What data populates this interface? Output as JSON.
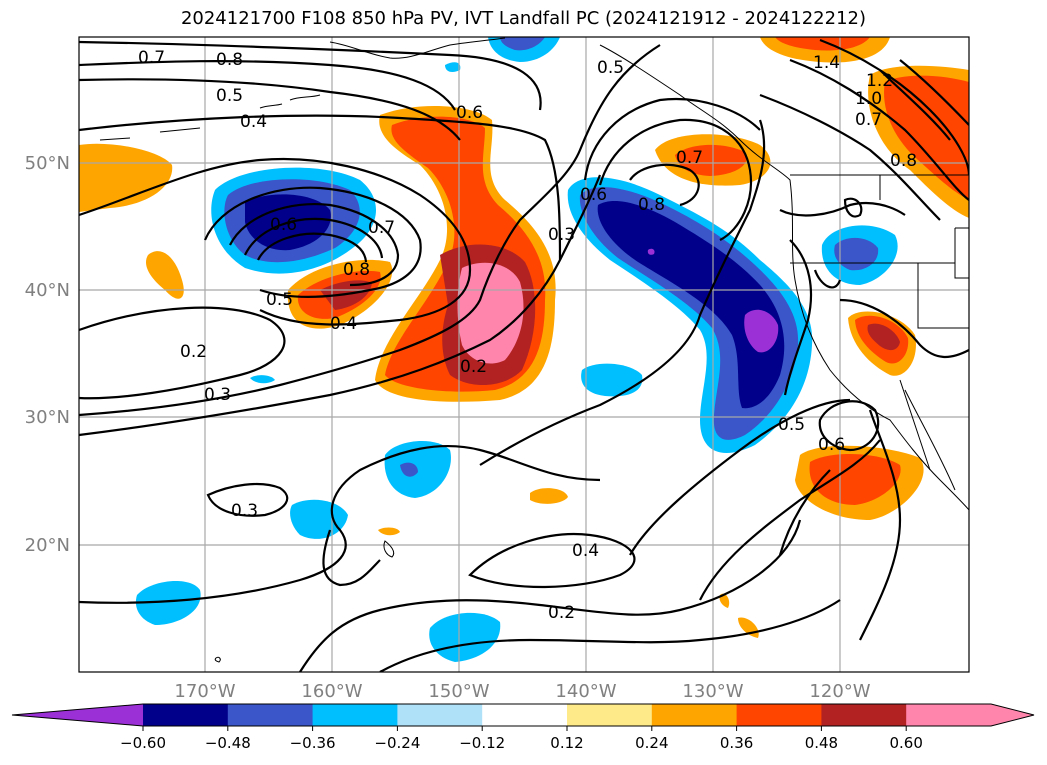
{
  "title": "2024121700 F108 850 hPa PV, IVT Landfall PC (2024121912 - 2024122212)",
  "axes": {
    "lon_ticks": [
      "170°W",
      "160°W",
      "150°W",
      "140°W",
      "130°W",
      "120°W"
    ],
    "lat_ticks": [
      "50°N",
      "40°N",
      "30°N",
      "20°N"
    ]
  },
  "colorbar": {
    "ticks": [
      "−0.60",
      "−0.48",
      "−0.36",
      "−0.24",
      "−0.12",
      "0.12",
      "0.24",
      "0.36",
      "0.48",
      "0.60"
    ],
    "colors": [
      "#9b30d6",
      "#00008b",
      "#3a56c9",
      "#00bfff",
      "#afe1f8",
      "#ffffff",
      "#ffea8a",
      "#ffa500",
      "#ff4500",
      "#b22222",
      "#ff85ad",
      "#ff85ad"
    ]
  },
  "contour_labels": [
    "0.7",
    "0.8",
    "0.5",
    "0.4",
    "0.6",
    "0.5",
    "1.4",
    "1.2",
    "1.0",
    "0.7",
    "0.8",
    "0.7",
    "0.6",
    "0.7",
    "0.8",
    "0.5",
    "0.4",
    "0.8",
    "0.6",
    "0.3",
    "0.2",
    "0.2",
    "0.3",
    "0.3",
    "0.5",
    "0.6",
    "0.4",
    "0.2"
  ]
}
